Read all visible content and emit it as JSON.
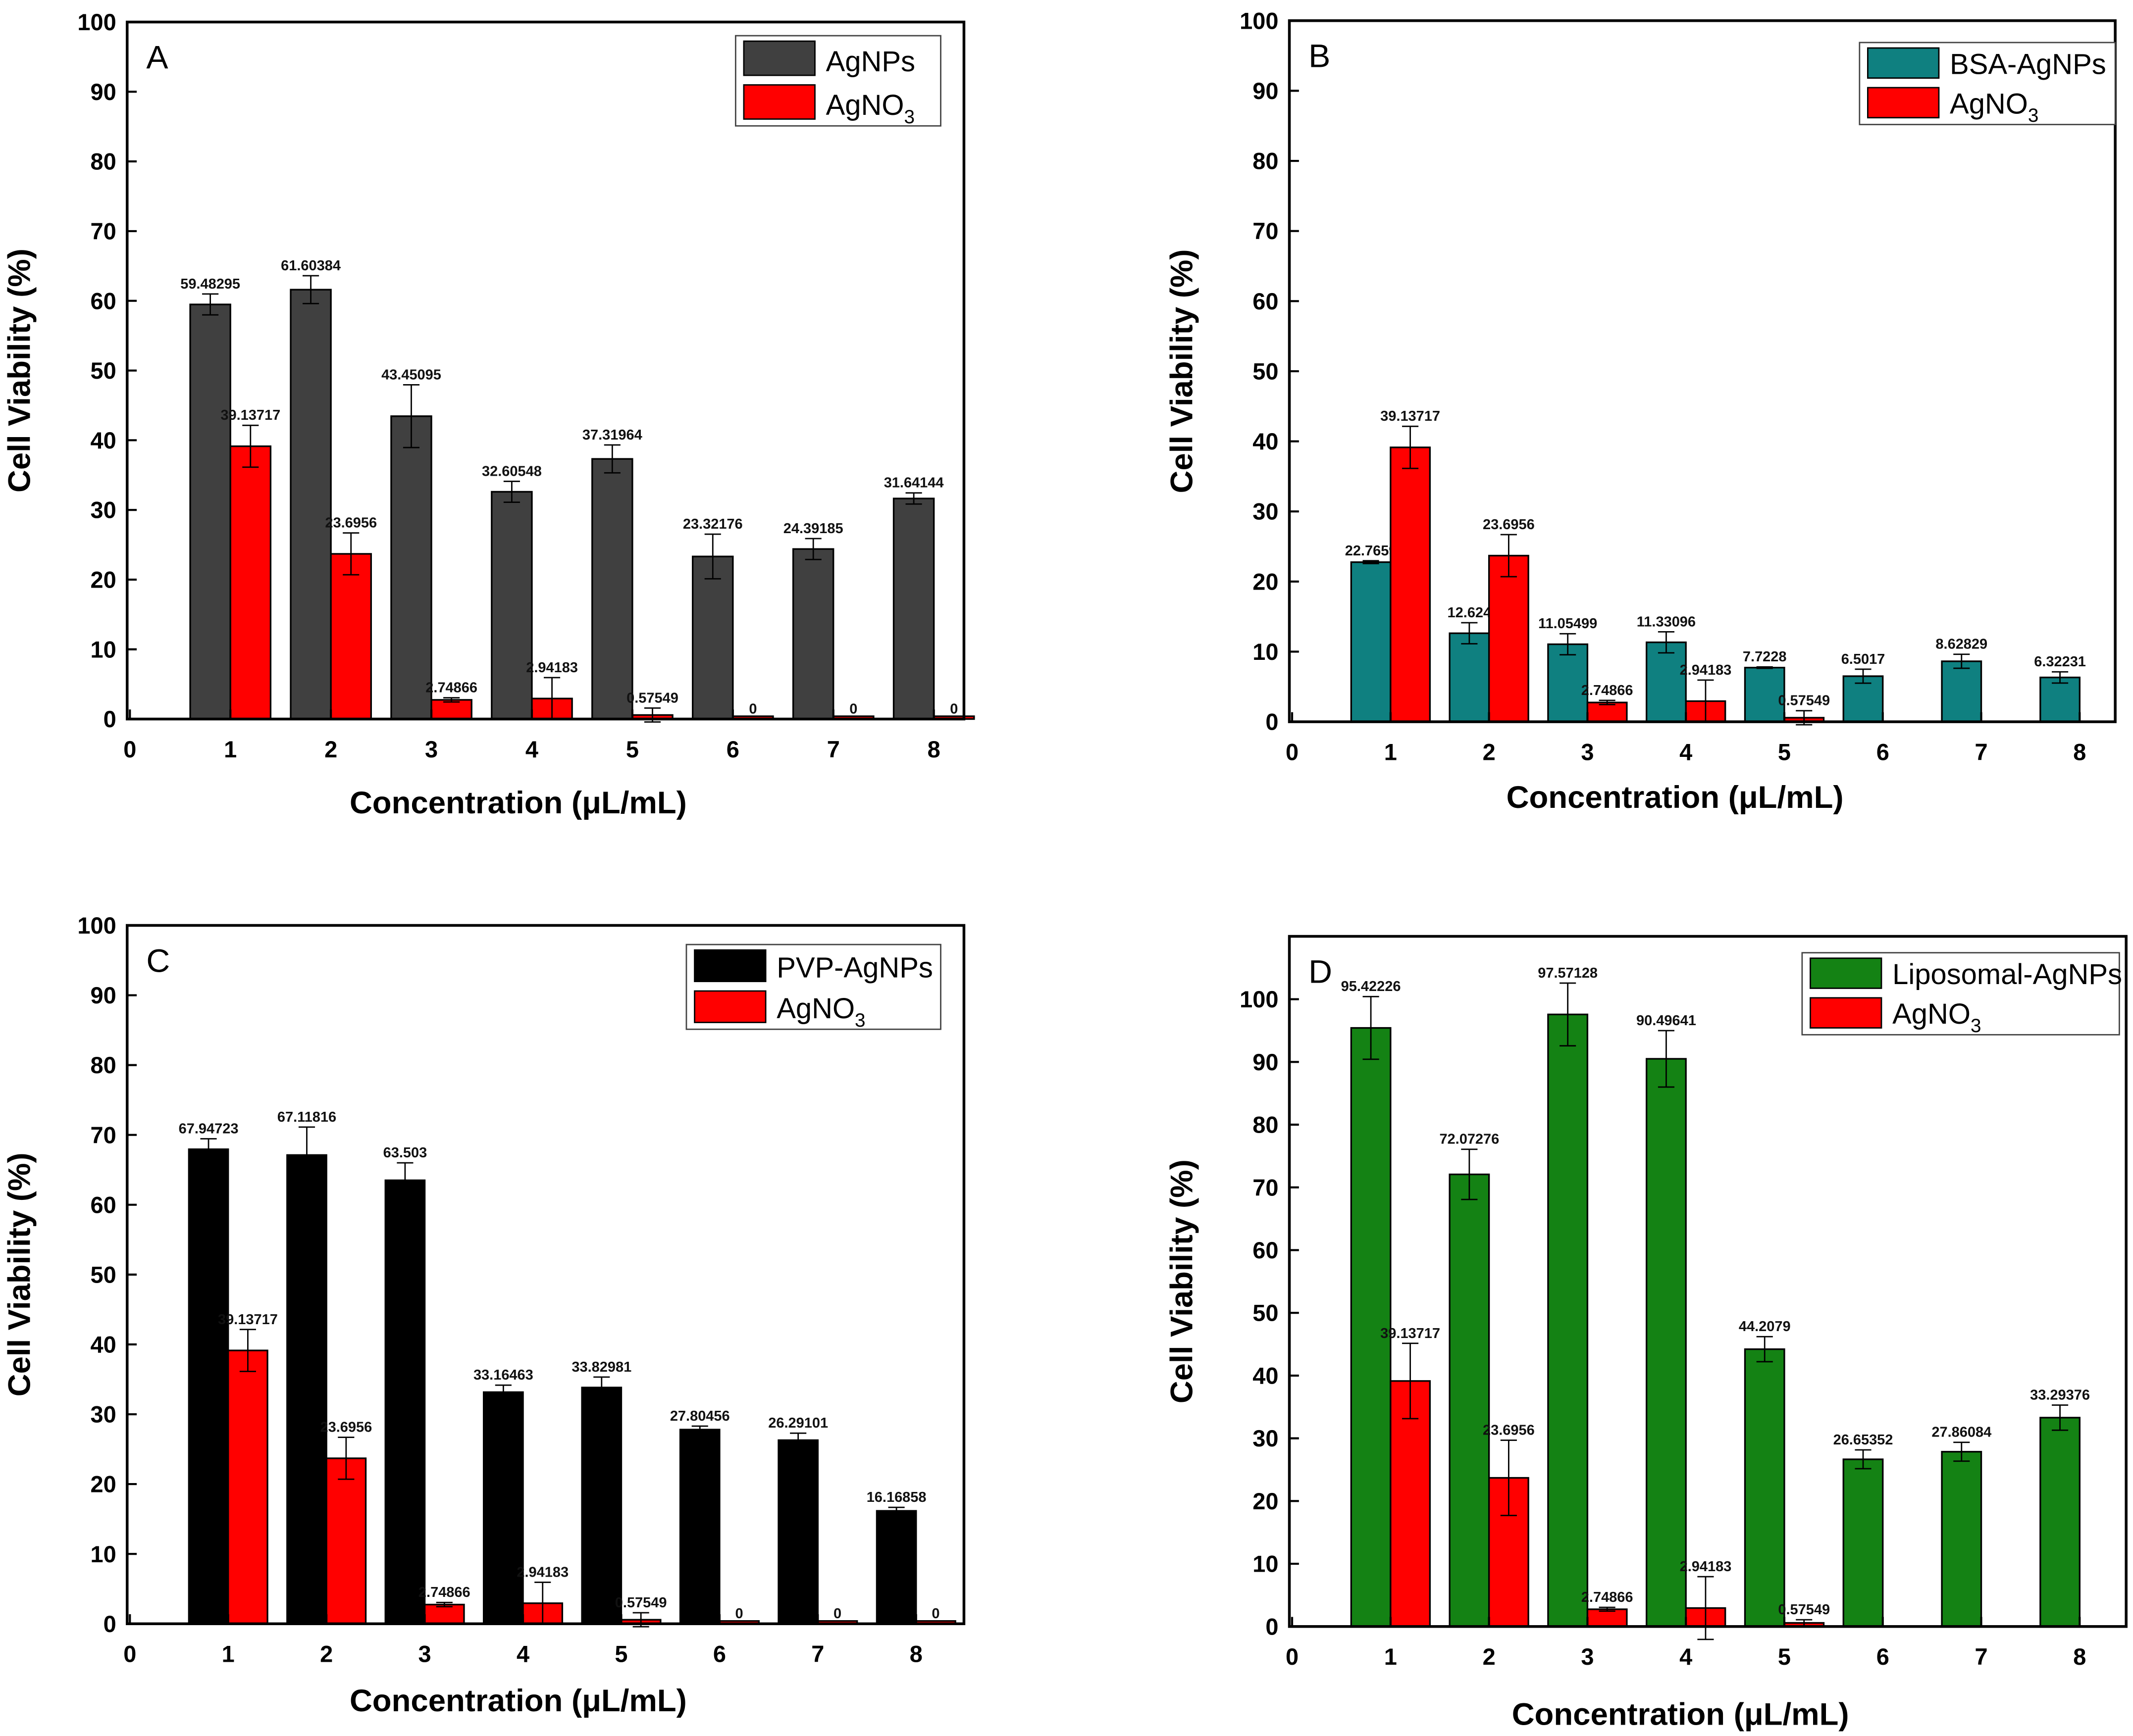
{
  "chart_data": [
    {
      "type": "bar",
      "panel": "A",
      "xlabel": "Concentration (μL/mL)",
      "ylabel": "Cell Viability (%)",
      "xlim": [
        0,
        8.3
      ],
      "ylim": [
        0,
        100
      ],
      "xticks": [
        0,
        1,
        2,
        3,
        4,
        5,
        6,
        7,
        8
      ],
      "yticks": [
        0,
        10,
        20,
        30,
        40,
        50,
        60,
        70,
        80,
        90,
        100
      ],
      "legend_position": "top-right",
      "categories": [
        1,
        2,
        3,
        4,
        5,
        6,
        7,
        8
      ],
      "series": [
        {
          "name": "AgNPs",
          "sub": "",
          "color": "#404040",
          "values": [
            59.48295,
            61.60384,
            43.45095,
            32.60548,
            37.31964,
            23.32176,
            24.39185,
            31.64144
          ],
          "errors": [
            1.5,
            2,
            4.5,
            1.5,
            2,
            3.2,
            1.5,
            0.8
          ],
          "labels": [
            "59.48295",
            "61.60384",
            "43.45095",
            "32.60548",
            "37.31964",
            "23.32176",
            "24.39185",
            "31.64144"
          ]
        },
        {
          "name": "AgNO",
          "sub": "3",
          "color": "#ff0000",
          "values": [
            39.13717,
            23.6956,
            2.74866,
            2.94183,
            0.57549,
            0,
            0,
            0
          ],
          "errors": [
            3,
            3,
            0.3,
            3,
            1,
            0,
            0,
            0
          ],
          "labels": [
            "39.13717",
            "23.6956",
            "2.74866",
            "2.94183",
            "0.57549",
            "0",
            "0",
            "0"
          ]
        }
      ]
    },
    {
      "type": "bar",
      "panel": "B",
      "xlabel": "Concentration (μL/mL)",
      "ylabel": "Cell Viability (%)",
      "xlim": [
        0,
        8.3
      ],
      "ylim": [
        0,
        100
      ],
      "xticks": [
        0,
        1,
        2,
        3,
        4,
        5,
        6,
        7,
        8
      ],
      "yticks": [
        0,
        10,
        20,
        30,
        40,
        50,
        60,
        70,
        80,
        90,
        100
      ],
      "legend_position": "top-right",
      "categories": [
        1,
        2,
        3,
        4,
        5,
        6,
        7,
        8
      ],
      "series": [
        {
          "name": "BSA-AgNPs",
          "sub": "",
          "color": "#0f8080",
          "values": [
            22.7659,
            12.624,
            11.05499,
            11.33096,
            7.7228,
            6.5017,
            8.62829,
            6.32231
          ],
          "errors": [
            0.2,
            1.5,
            1.5,
            1.5,
            0.1,
            1,
            1,
            0.8
          ],
          "labels": [
            "22.7659",
            "12.624",
            "11.05499",
            "11.33096",
            "7.7228",
            "6.5017",
            "8.62829",
            "6.32231"
          ]
        },
        {
          "name": "AgNO",
          "sub": "3",
          "color": "#ff0000",
          "values": [
            39.13717,
            23.6956,
            2.74866,
            2.94183,
            0.57549,
            null,
            null,
            null
          ],
          "errors": [
            3,
            3,
            0.3,
            3,
            1,
            0,
            0,
            0
          ],
          "labels": [
            "39.13717",
            "23.6956",
            "2.74866",
            "2.94183",
            "0.57549",
            "",
            "",
            ""
          ]
        }
      ]
    },
    {
      "type": "bar",
      "panel": "C",
      "xlabel": "Concentration (μL/mL)",
      "ylabel": "Cell Viability (%)",
      "xlim": [
        0,
        8.3
      ],
      "ylim": [
        0,
        100
      ],
      "xticks": [
        0,
        1,
        2,
        3,
        4,
        5,
        6,
        7,
        8
      ],
      "yticks": [
        0,
        10,
        20,
        30,
        40,
        50,
        60,
        70,
        80,
        90,
        100
      ],
      "legend_position": "top-right",
      "categories": [
        1,
        2,
        3,
        4,
        5,
        6,
        7,
        8
      ],
      "series": [
        {
          "name": "PVP-AgNPs",
          "sub": "",
          "color": "#000000",
          "values": [
            67.94723,
            67.11816,
            63.503,
            33.16463,
            33.82981,
            27.80456,
            26.29101,
            16.16858
          ],
          "errors": [
            1.5,
            4,
            2.5,
            1,
            1.5,
            0.5,
            1,
            0.5
          ],
          "labels": [
            "67.94723",
            "67.11816",
            "63.503",
            "33.16463",
            "33.82981",
            "27.80456",
            "26.29101",
            "16.16858"
          ]
        },
        {
          "name": "AgNO",
          "sub": "3",
          "color": "#ff0000",
          "values": [
            39.13717,
            23.6956,
            2.74866,
            2.94183,
            0.57549,
            0,
            0,
            0
          ],
          "errors": [
            3,
            3,
            0.3,
            3,
            1,
            0,
            0,
            0
          ],
          "labels": [
            "39.13717",
            "23.6956",
            "2.74866",
            "2.94183",
            "0.57549",
            "0",
            "0",
            "0"
          ]
        }
      ]
    },
    {
      "type": "bar",
      "panel": "D",
      "xlabel": "Concentration (μL/mL)",
      "ylabel": "Cell Viability  (%)",
      "xlim": [
        0,
        8.5
      ],
      "ylim": [
        0,
        110
      ],
      "xticks": [
        0,
        1,
        2,
        3,
        4,
        5,
        6,
        7,
        8
      ],
      "yticks": [
        0,
        10,
        20,
        30,
        40,
        50,
        60,
        70,
        80,
        90,
        100
      ],
      "legend_position": "top-right",
      "categories": [
        1,
        2,
        3,
        4,
        5,
        6,
        7,
        8
      ],
      "series": [
        {
          "name": "Liposomal-AgNPs",
          "sub": "",
          "color": "#148214",
          "values": [
            95.42226,
            72.07276,
            97.57128,
            90.49641,
            44.2079,
            26.65352,
            27.86084,
            33.29376
          ],
          "errors": [
            5,
            4,
            5,
            4.5,
            2,
            1.5,
            1.5,
            2
          ],
          "labels": [
            "95.42226",
            "72.07276",
            "97.57128",
            "90.49641",
            "44.2079",
            "26.65352",
            "27.86084",
            "33.29376"
          ]
        },
        {
          "name": "AgNO",
          "sub": "3",
          "color": "#ff0000",
          "values": [
            39.13717,
            23.6956,
            2.74866,
            2.94183,
            0.57549,
            null,
            null,
            null
          ],
          "errors": [
            6,
            6,
            0.3,
            5,
            0.5,
            0,
            0,
            0
          ],
          "labels": [
            "39.13717",
            "23.6956",
            "2.74866",
            "2.94183",
            "0.57549",
            "",
            "",
            ""
          ]
        }
      ]
    }
  ]
}
